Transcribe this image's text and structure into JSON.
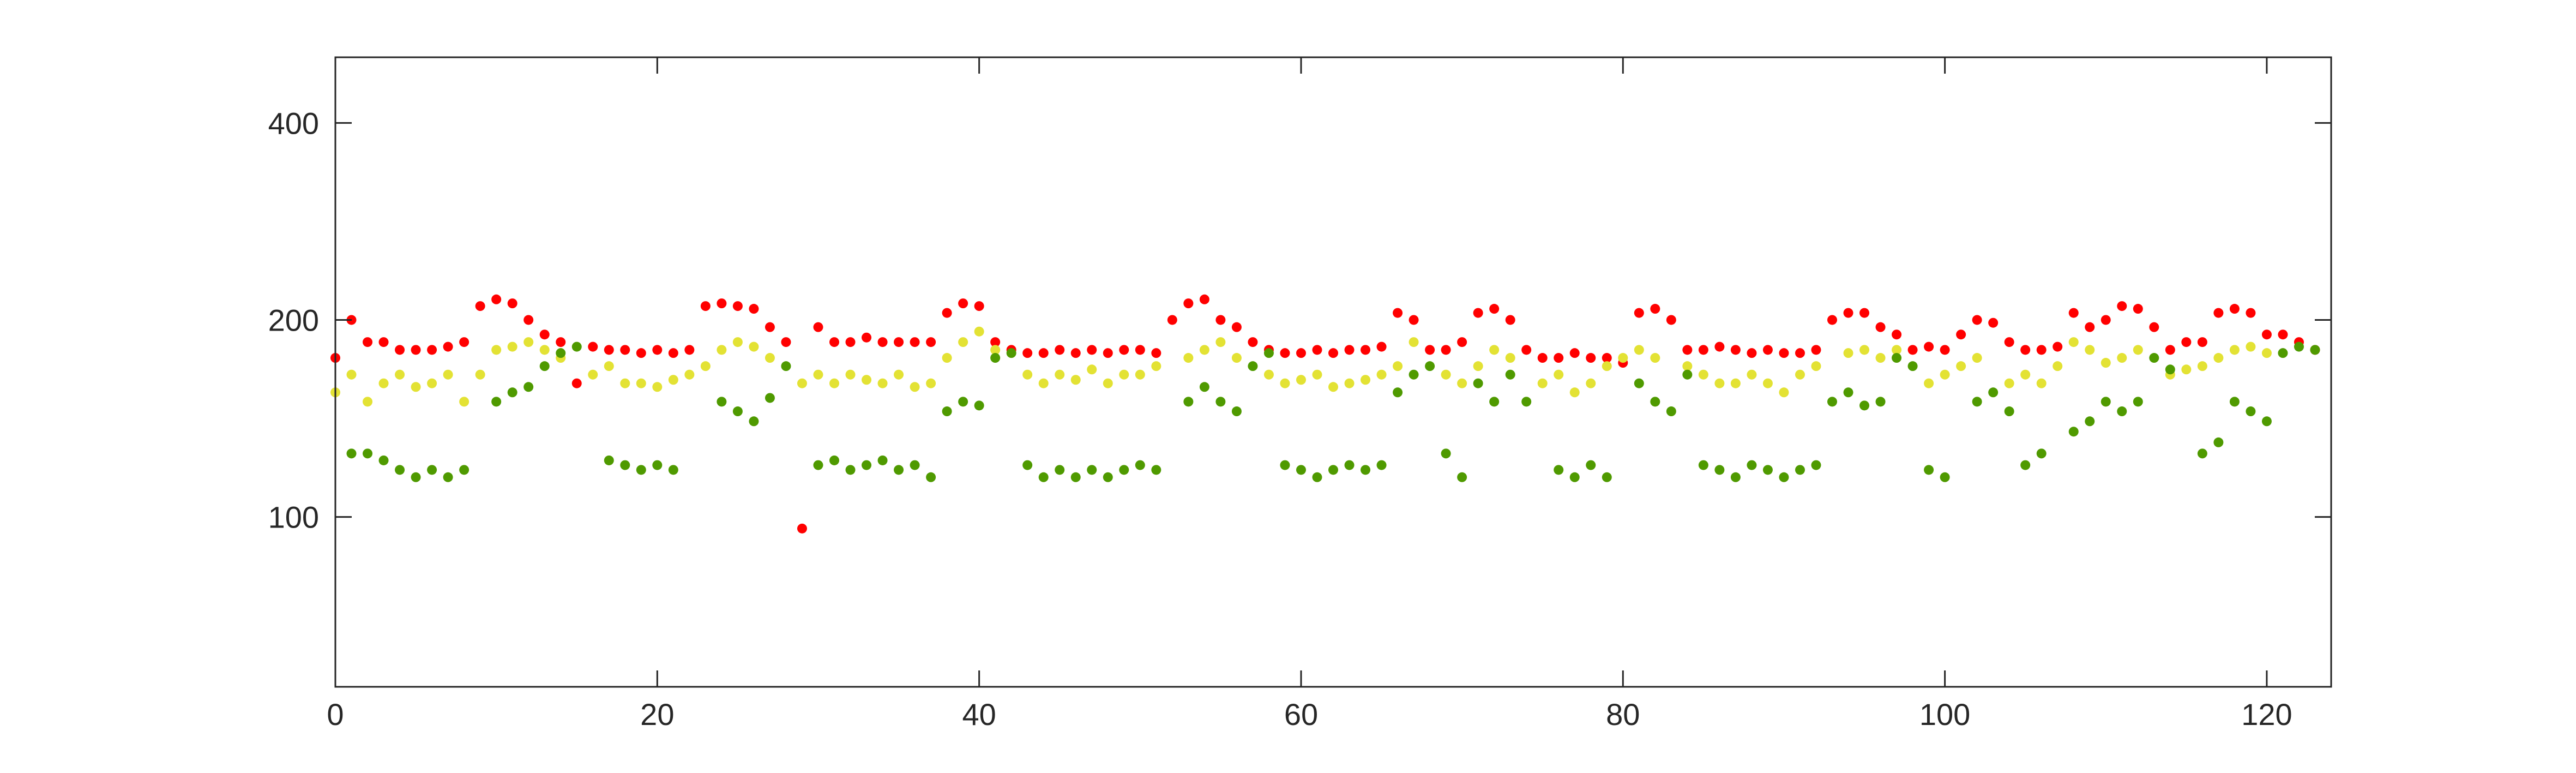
{
  "chart_data": {
    "type": "scatter",
    "x": [
      0,
      1,
      2,
      3,
      4,
      5,
      6,
      7,
      8,
      9,
      10,
      11,
      12,
      13,
      14,
      15,
      16,
      17,
      18,
      19,
      20,
      21,
      22,
      23,
      24,
      25,
      26,
      27,
      28,
      29,
      30,
      31,
      32,
      33,
      34,
      35,
      36,
      37,
      38,
      39,
      40,
      41,
      42,
      43,
      44,
      45,
      46,
      47,
      48,
      49,
      50,
      51,
      52,
      53,
      54,
      55,
      56,
      57,
      58,
      59,
      60,
      61,
      62,
      63,
      64,
      65,
      66,
      67,
      68,
      69,
      70,
      71,
      72,
      73,
      74,
      75,
      76,
      77,
      78,
      79,
      80,
      81,
      82,
      83,
      84,
      85,
      86,
      87,
      88,
      89,
      90,
      91,
      92,
      93,
      94,
      95,
      96,
      97,
      98,
      99,
      100,
      101,
      102,
      103,
      104,
      105,
      106,
      107,
      108,
      109,
      110,
      111,
      112,
      113,
      114,
      115,
      116,
      117,
      118,
      119,
      120,
      121,
      122,
      123
    ],
    "series": [
      {
        "color": "#ff0000",
        "values": [
          175,
          200,
          185,
          185,
          180,
          180,
          180,
          182,
          185,
          210,
          215,
          212,
          200,
          190,
          185,
          160,
          182,
          180,
          180,
          178,
          180,
          178,
          180,
          210,
          212,
          210,
          208,
          195,
          185,
          96,
          195,
          185,
          185,
          188,
          185,
          185,
          185,
          185,
          205,
          212,
          210,
          185,
          180,
          178,
          178,
          180,
          178,
          180,
          178,
          180,
          180,
          178,
          200,
          212,
          215,
          200,
          195,
          185,
          180,
          178,
          178,
          180,
          178,
          180,
          180,
          182,
          205,
          200,
          180,
          180,
          185,
          205,
          208,
          200,
          180,
          175,
          175,
          178,
          175,
          175,
          172,
          205,
          208,
          200,
          180,
          180,
          182,
          180,
          178,
          180,
          178,
          178,
          180,
          200,
          205,
          205,
          195,
          190,
          180,
          182,
          180,
          190,
          200,
          198,
          185,
          180,
          180,
          182,
          205,
          195,
          200,
          210,
          208,
          195,
          180,
          185,
          185,
          205,
          208,
          205,
          190,
          190,
          185,
          180
        ]
      },
      {
        "color": "#e3e234",
        "values": [
          155,
          165,
          150,
          160,
          165,
          158,
          160,
          165,
          150,
          165,
          180,
          182,
          185,
          180,
          175,
          null,
          165,
          170,
          160,
          160,
          158,
          162,
          165,
          170,
          180,
          185,
          182,
          175,
          null,
          160,
          165,
          160,
          165,
          162,
          160,
          165,
          158,
          160,
          175,
          185,
          192,
          180,
          null,
          165,
          160,
          165,
          162,
          168,
          160,
          165,
          165,
          170,
          null,
          175,
          180,
          185,
          175,
          null,
          165,
          160,
          162,
          165,
          158,
          160,
          162,
          165,
          170,
          185,
          null,
          165,
          160,
          170,
          180,
          175,
          null,
          160,
          165,
          155,
          160,
          170,
          175,
          180,
          175,
          null,
          170,
          165,
          160,
          160,
          165,
          160,
          155,
          165,
          170,
          null,
          178,
          180,
          175,
          180,
          null,
          160,
          165,
          170,
          175,
          null,
          160,
          165,
          160,
          170,
          185,
          180,
          172,
          175,
          180,
          null,
          165,
          168,
          170,
          175,
          180,
          182,
          178,
          null,
          null,
          null
        ]
      },
      {
        "color": "#4f9a00",
        "values": [
          null,
          125,
          125,
          122,
          118,
          115,
          118,
          115,
          118,
          null,
          150,
          155,
          158,
          170,
          178,
          182,
          null,
          122,
          120,
          118,
          120,
          118,
          null,
          null,
          150,
          145,
          140,
          152,
          170,
          null,
          120,
          122,
          118,
          120,
          122,
          118,
          120,
          115,
          145,
          150,
          148,
          175,
          178,
          120,
          115,
          118,
          115,
          118,
          115,
          118,
          120,
          118,
          null,
          150,
          158,
          150,
          145,
          170,
          178,
          120,
          118,
          115,
          118,
          120,
          118,
          120,
          155,
          165,
          170,
          125,
          115,
          160,
          150,
          165,
          150,
          null,
          118,
          115,
          120,
          115,
          null,
          160,
          150,
          145,
          165,
          120,
          118,
          115,
          120,
          118,
          115,
          118,
          120,
          150,
          155,
          148,
          150,
          175,
          170,
          118,
          115,
          null,
          150,
          155,
          145,
          120,
          125,
          null,
          135,
          140,
          150,
          145,
          150,
          175,
          168,
          null,
          125,
          130,
          150,
          145,
          140,
          178,
          182,
          180
        ]
      }
    ],
    "xlim": [
      0,
      124
    ],
    "xticks": [
      0,
      20,
      40,
      60,
      80,
      100,
      120
    ],
    "ylim": [
      55,
      504
    ],
    "yticks": [
      100,
      200,
      400
    ],
    "yscale": "log"
  }
}
